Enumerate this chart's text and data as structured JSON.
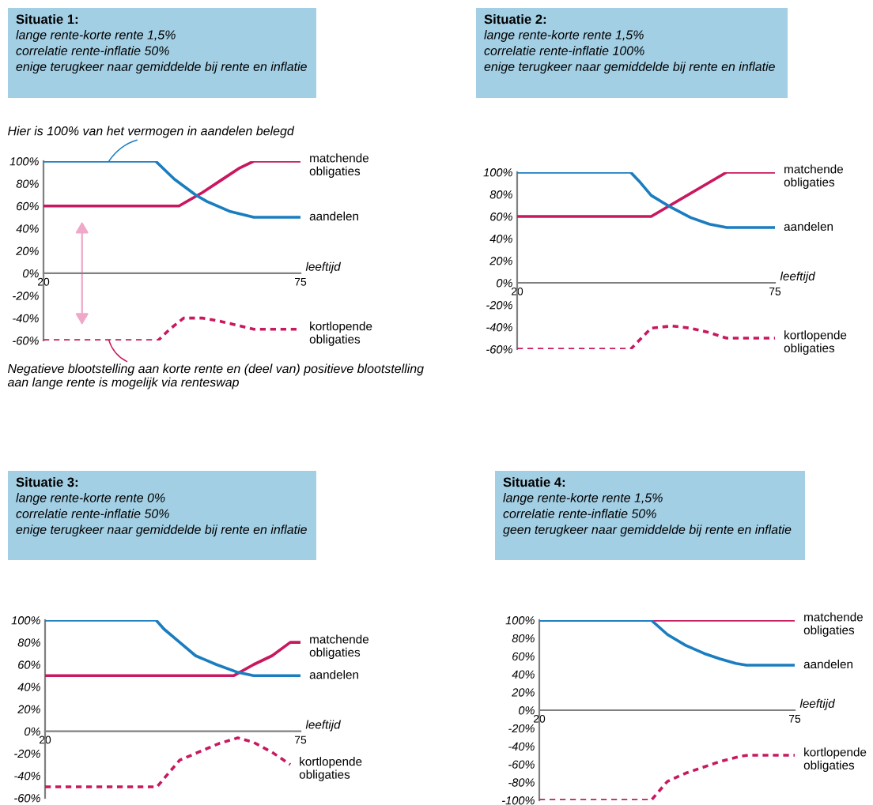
{
  "chart_data": [
    {
      "type": "line",
      "title": "Situatie 1:",
      "subtitle": "lange rente-korte rente 1,5%\ncorrelatie rente-inflatie 50%\nenige terugkeer naar gemiddelde bij rente en inflatie",
      "xlabel": "leeftijd",
      "xlim": [
        20,
        75
      ],
      "xticks": [
        20,
        75
      ],
      "ylim": [
        -60,
        100
      ],
      "yticks": [
        {
          "value": -60,
          "label": "-60%"
        },
        {
          "value": -40,
          "label": "-40%"
        },
        {
          "value": -20,
          "label": "-20%"
        },
        {
          "value": 0,
          "label": "0%"
        },
        {
          "value": 20,
          "label": "20%"
        },
        {
          "value": 40,
          "label": "40%"
        },
        {
          "value": 60,
          "label": "60%"
        },
        {
          "value": 80,
          "label": "80%"
        },
        {
          "value": 100,
          "label": "100%"
        }
      ],
      "series": [
        {
          "name": "matchende\nobligaties",
          "color": "#c8185f",
          "line_style": "solid",
          "x": [
            20,
            49,
            54,
            58,
            62,
            65,
            75
          ],
          "values": [
            60,
            60,
            72,
            83,
            94,
            100,
            100
          ]
        },
        {
          "name": "aandelen",
          "color": "#1a7dc0",
          "line_style": "solid",
          "x": [
            20,
            44,
            48,
            52.5,
            55,
            60,
            65,
            75
          ],
          "values": [
            100,
            100,
            84,
            70,
            64,
            55,
            50,
            50
          ]
        },
        {
          "name": "kortlopende\nobligaties",
          "color": "#c8185f",
          "line_style": "dashed",
          "x": [
            20,
            44.5,
            47,
            50,
            54,
            58,
            65,
            75
          ],
          "values": [
            -60,
            -60,
            -50,
            -40,
            -40,
            -43,
            -50,
            -50
          ]
        }
      ],
      "annotations": [
        {
          "text": "Hier is 100% van het vermogen in aandelen belegd",
          "x": 34,
          "y": 100
        },
        {
          "text": "Negatieve blootstelling aan korte rente en (deel van) positieve blootstelling\naan lange rente is mogelijk via renteswap",
          "x": 34,
          "y": -60
        }
      ],
      "grid": false,
      "legend": false
    },
    {
      "type": "line",
      "title": "Situatie 2:",
      "subtitle": "lange rente-korte rente 1,5%\ncorrelatie rente-inflatie 100%\nenige terugkeer naar gemiddelde bij rente en inflatie",
      "xlabel": "leeftijd",
      "xlim": [
        20,
        75
      ],
      "xticks": [
        20,
        75
      ],
      "ylim": [
        -60,
        100
      ],
      "yticks": [
        {
          "value": -60,
          "label": "-60%"
        },
        {
          "value": -40,
          "label": "-40%"
        },
        {
          "value": -20,
          "label": "-20%"
        },
        {
          "value": 0,
          "label": "0%"
        },
        {
          "value": 20,
          "label": "20%"
        },
        {
          "value": 40,
          "label": "40%"
        },
        {
          "value": 60,
          "label": "60%"
        },
        {
          "value": 80,
          "label": "80%"
        },
        {
          "value": 100,
          "label": "100%"
        }
      ],
      "series": [
        {
          "name": "matchende\nobligaties",
          "color": "#c8185f",
          "line_style": "solid",
          "x": [
            20,
            48.6,
            64.7,
            75
          ],
          "values": [
            60,
            60,
            100,
            100
          ]
        },
        {
          "name": "aandelen",
          "color": "#1a7dc0",
          "line_style": "solid",
          "x": [
            20,
            44.2,
            46,
            48.6,
            52.5,
            57,
            61,
            64.7,
            75
          ],
          "values": [
            100,
            100,
            92,
            79,
            69,
            59,
            53,
            50,
            50
          ]
        },
        {
          "name": "kortlopende\nobligaties",
          "color": "#c8185f",
          "line_style": "dashed",
          "x": [
            20,
            44.2,
            46.5,
            48.6,
            53,
            57,
            61,
            64.7,
            75
          ],
          "values": [
            -60,
            -60,
            -50,
            -41,
            -39,
            -41,
            -45,
            -50,
            -50
          ]
        }
      ],
      "grid": false,
      "legend": false
    },
    {
      "type": "line",
      "title": "Situatie 3:",
      "subtitle": "lange rente-korte rente 0%\ncorrelatie rente-inflatie 50%\nenige terugkeer naar gemiddelde bij rente en inflatie",
      "xlabel": "leeftijd",
      "xlim": [
        20,
        75
      ],
      "xticks": [
        20,
        75
      ],
      "ylim": [
        -60,
        100
      ],
      "yticks": [
        {
          "value": -60,
          "label": "-60%"
        },
        {
          "value": -40,
          "label": "-40%"
        },
        {
          "value": -20,
          "label": "-20%"
        },
        {
          "value": 0,
          "label": "0%"
        },
        {
          "value": 20,
          "label": "20%"
        },
        {
          "value": 40,
          "label": "40%"
        },
        {
          "value": 60,
          "label": "60%"
        },
        {
          "value": 80,
          "label": "80%"
        },
        {
          "value": 100,
          "label": "100%"
        }
      ],
      "series": [
        {
          "name": "matchende\nobligaties",
          "color": "#c8185f",
          "line_style": "solid",
          "x": [
            20,
            60.6,
            64.9,
            68.9,
            72.8,
            75
          ],
          "values": [
            50,
            50,
            60,
            68,
            80,
            80
          ]
        },
        {
          "name": "aandelen",
          "color": "#1a7dc0",
          "line_style": "solid",
          "x": [
            20,
            43.9,
            45.6,
            49,
            52.4,
            56.9,
            61.5,
            64.9,
            75
          ],
          "values": [
            100,
            100,
            92,
            80,
            68,
            60,
            53,
            50,
            50
          ]
        },
        {
          "name": "kortlopende\nobligaties",
          "color": "#c8185f",
          "line_style": "dashed",
          "x": [
            20,
            44.1,
            49,
            53.5,
            57.5,
            61.5,
            64.9,
            68.9,
            72.8
          ],
          "values": [
            -50,
            -50,
            -26,
            -18,
            -11,
            -6,
            -10,
            -19,
            -30
          ]
        }
      ],
      "grid": false,
      "legend": false
    },
    {
      "type": "line",
      "title": "Situatie 4:",
      "subtitle": "lange rente-korte rente 1,5%\ncorrelatie rente-inflatie 50%\ngeen terugkeer naar gemiddelde bij rente en inflatie",
      "xlabel": "leeftijd",
      "xlim": [
        20,
        75
      ],
      "xticks": [
        20,
        75
      ],
      "ylim": [
        -100,
        100
      ],
      "yticks": [
        {
          "value": -100,
          "label": "-100%"
        },
        {
          "value": -80,
          "label": "-80%"
        },
        {
          "value": -60,
          "label": "-60%"
        },
        {
          "value": -40,
          "label": "-40%"
        },
        {
          "value": -20,
          "label": "-20%"
        },
        {
          "value": 0,
          "label": "0%"
        },
        {
          "value": 20,
          "label": "20%"
        },
        {
          "value": 40,
          "label": "40%"
        },
        {
          "value": 60,
          "label": "60%"
        },
        {
          "value": 80,
          "label": "80%"
        },
        {
          "value": 100,
          "label": "100%"
        }
      ],
      "series": [
        {
          "name": "matchende\nobligaties",
          "color": "#c8185f",
          "line_style": "solid",
          "x": [
            20,
            75
          ],
          "values": [
            100,
            100
          ]
        },
        {
          "name": "aandelen",
          "color": "#1a7dc0",
          "line_style": "solid",
          "x": [
            20,
            44.1,
            47.6,
            51.5,
            55.5,
            58.9,
            62.3,
            64.6,
            75
          ],
          "values": [
            100,
            100,
            84,
            72,
            63,
            57,
            52,
            50,
            50
          ]
        },
        {
          "name": "kortlopende\nobligaties",
          "color": "#c8185f",
          "line_style": "dashed",
          "x": [
            20,
            44.1,
            47.6,
            51.5,
            55.5,
            58.9,
            63.5,
            65,
            75
          ],
          "values": [
            -100,
            -100,
            -79,
            -70,
            -63,
            -57,
            -51,
            -50,
            -50
          ]
        }
      ],
      "grid": false,
      "legend": false
    }
  ]
}
